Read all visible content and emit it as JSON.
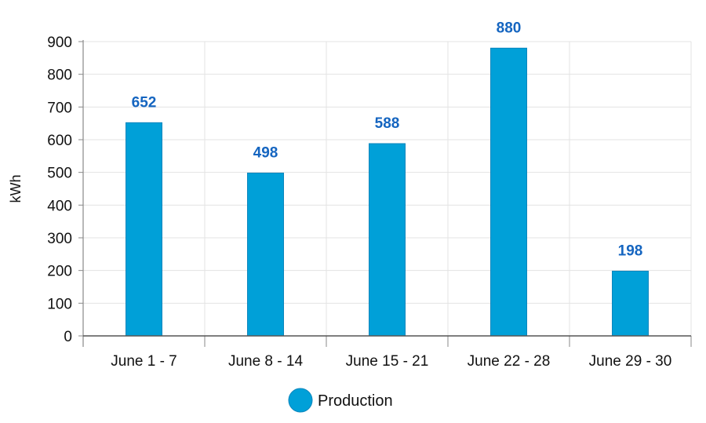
{
  "chart_data": {
    "type": "bar",
    "categories": [
      "June 1 - 7",
      "June 8 - 14",
      "June 15 - 21",
      "June 22 - 28",
      "June 29 - 30"
    ],
    "series": [
      {
        "name": "Production",
        "values": [
          652,
          498,
          588,
          880,
          198
        ],
        "color": "#00a0d8"
      }
    ],
    "data_labels": [
      "652",
      "498",
      "588",
      "880",
      "198"
    ],
    "yticks": [
      "0",
      "100",
      "200",
      "300",
      "400",
      "500",
      "600",
      "700",
      "800",
      "900"
    ],
    "ylabel": "kWh",
    "ylim": [
      0,
      900
    ],
    "grid": true,
    "legend_position": "bottom-center",
    "label_color": "#1565c0"
  }
}
